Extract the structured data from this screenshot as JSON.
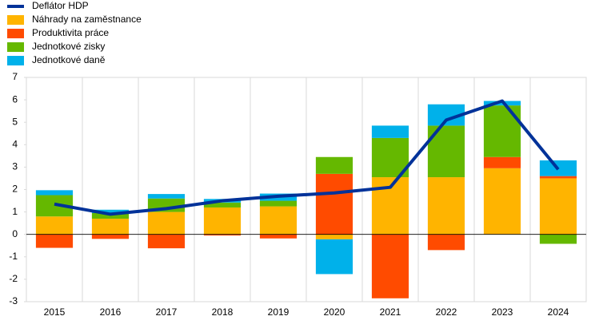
{
  "chart_data": {
    "type": "bar",
    "categories": [
      "2015",
      "2016",
      "2017",
      "2018",
      "2019",
      "2020",
      "2021",
      "2022",
      "2023",
      "2024"
    ],
    "series": [
      {
        "name": "Deflátor HDP",
        "type": "line",
        "color": "#003299",
        "values": [
          1.35,
          0.9,
          1.15,
          1.5,
          1.7,
          1.85,
          2.1,
          5.1,
          5.95,
          2.9
        ]
      },
      {
        "name": "Náhrady na zaměstnance",
        "type": "bar",
        "color": "#ffb400",
        "values": [
          0.8,
          0.7,
          1.0,
          1.2,
          1.25,
          -0.22,
          2.55,
          2.55,
          2.95,
          2.5
        ]
      },
      {
        "name": "Produktivita práce",
        "type": "bar",
        "color": "#ff4b00",
        "values": [
          -0.6,
          -0.2,
          -0.62,
          -0.05,
          -0.18,
          2.7,
          -2.85,
          -0.7,
          0.5,
          0.1
        ]
      },
      {
        "name": "Jednotkové zisky",
        "type": "bar",
        "color": "#65b800",
        "values": [
          0.95,
          0.25,
          0.6,
          0.22,
          0.25,
          0.75,
          1.75,
          2.3,
          2.3,
          -0.42
        ]
      },
      {
        "name": "Jednotkové daně",
        "type": "bar",
        "color": "#00b1ea",
        "values": [
          0.22,
          0.15,
          0.2,
          0.16,
          0.32,
          -1.55,
          0.55,
          0.95,
          0.2,
          0.7
        ]
      }
    ],
    "ylim": [
      -3,
      7
    ],
    "yticks": [
      -3,
      -2,
      -1,
      0,
      1,
      2,
      3,
      4,
      5,
      6,
      7
    ],
    "grid": true
  }
}
